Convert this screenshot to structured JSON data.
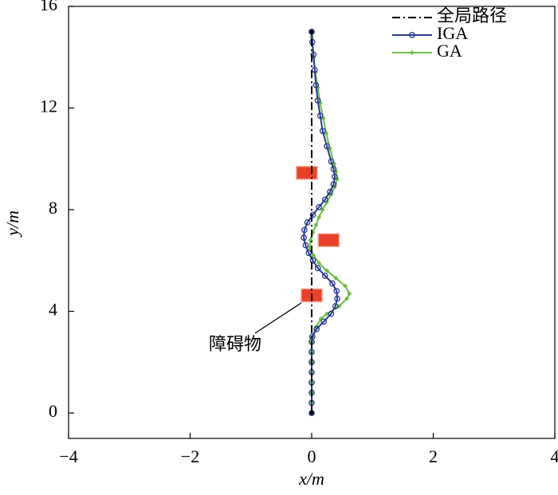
{
  "chart_data": {
    "type": "line",
    "xlabel": "x/m",
    "ylabel": "y/m",
    "xlim": [
      -4,
      4
    ],
    "ylim": [
      -1,
      16
    ],
    "xticks": [
      {
        "value": -4,
        "label": "−4"
      },
      {
        "value": -2,
        "label": "−2"
      },
      0,
      2,
      4
    ],
    "yticks": [
      0,
      4,
      8,
      12,
      16
    ],
    "legend": "upper right",
    "annotation": "障碍物",
    "obstacles": {
      "color": "#e8402a",
      "x": [
        -0.08,
        0.28,
        0.0
      ],
      "y": [
        9.45,
        6.8,
        4.63
      ]
    },
    "series": [
      {
        "name": "全局路径",
        "color": "#000000",
        "style": "dashdot",
        "marker": "dot",
        "x": [
          0,
          0
        ],
        "y": [
          0,
          15
        ]
      },
      {
        "name": "IGA",
        "color": "#2b3990",
        "style": "solid",
        "marker": "circle",
        "y": [
          0,
          0.4,
          0.8,
          1.2,
          1.6,
          2.0,
          2.4,
          2.8,
          3.0,
          3.3,
          3.6,
          3.9,
          4.2,
          4.5,
          4.8,
          5.1,
          5.4,
          5.7,
          6.0,
          6.3,
          6.6,
          6.9,
          7.2,
          7.5,
          7.8,
          8.1,
          8.4,
          8.7,
          9.0,
          9.3,
          9.6,
          9.9,
          10.5,
          11.1,
          11.7,
          12.3,
          12.9,
          13.5,
          14.1,
          14.6,
          15.0
        ],
        "x": [
          0,
          0,
          0,
          0,
          0,
          0,
          0,
          0,
          0.01,
          0.08,
          0.2,
          0.32,
          0.39,
          0.42,
          0.41,
          0.34,
          0.22,
          0.1,
          0.02,
          -0.05,
          -0.1,
          -0.13,
          -0.12,
          -0.07,
          0.02,
          0.12,
          0.22,
          0.3,
          0.36,
          0.38,
          0.36,
          0.32,
          0.25,
          0.18,
          0.14,
          0.1,
          0.07,
          0.05,
          0.03,
          0.01,
          0
        ]
      },
      {
        "name": "GA",
        "color": "#6cbd45",
        "style": "solid",
        "marker": "diamond",
        "y": [
          0,
          0.4,
          0.8,
          1.2,
          1.6,
          2.0,
          2.4,
          2.8,
          3.0,
          3.4,
          3.7,
          3.9,
          4.2,
          4.5,
          4.7,
          5.0,
          5.3,
          5.6,
          5.9,
          6.2,
          6.5,
          6.8,
          7.1,
          7.4,
          7.7,
          8.0,
          8.3,
          8.6,
          8.9,
          9.2,
          9.5,
          9.8,
          10.4,
          11.0,
          11.6,
          12.2,
          12.8,
          13.4,
          14.0,
          14.5,
          14.8
        ],
        "x": [
          0,
          0,
          0,
          0,
          0,
          0,
          0,
          0,
          0.01,
          0.08,
          0.15,
          0.25,
          0.45,
          0.58,
          0.62,
          0.55,
          0.4,
          0.25,
          0.12,
          0.03,
          -0.03,
          -0.02,
          0.02,
          0.07,
          0.12,
          0.18,
          0.25,
          0.32,
          0.38,
          0.42,
          0.4,
          0.37,
          0.3,
          0.24,
          0.19,
          0.14,
          0.1,
          0.06,
          0.03,
          0.01,
          0
        ]
      }
    ]
  }
}
